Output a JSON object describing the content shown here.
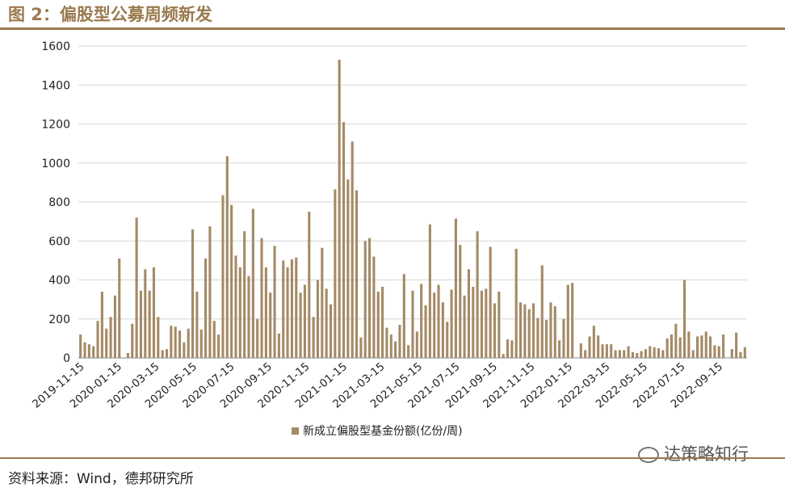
{
  "figure": {
    "title": "图 2：偏股型公募周频新发",
    "source": "资料来源：Wind，德邦研究所",
    "watermark": "达策略知行",
    "watermark_icon": "wechat-icon"
  },
  "colors": {
    "bar": "#a48a66",
    "grid": "#d6d6d6",
    "accent": "#9a7b4f"
  },
  "chart_data": {
    "type": "bar",
    "title": "",
    "xlabel": "",
    "ylabel": "",
    "ylim": [
      0,
      1600
    ],
    "yticks": [
      0,
      200,
      400,
      600,
      800,
      1000,
      1200,
      1400,
      1600
    ],
    "xtick_labels": [
      "2019-11-15",
      "2020-01-15",
      "2020-03-15",
      "2020-05-15",
      "2020-07-15",
      "2020-09-15",
      "2020-11-15",
      "2021-01-15",
      "2021-03-15",
      "2021-05-15",
      "2021-07-15",
      "2021-09-15",
      "2021-11-15",
      "2022-01-15",
      "2022-03-15",
      "2022-05-15",
      "2022-07-15",
      "2022-09-15"
    ],
    "grid": true,
    "legend": {
      "position": "bottom-center",
      "entries": [
        "新成立偏股型基金份额(亿份/周)"
      ]
    },
    "series": [
      {
        "name": "新成立偏股型基金份额(亿份/周)",
        "values": [
          120,
          80,
          70,
          60,
          190,
          340,
          150,
          210,
          320,
          510,
          0,
          25,
          175,
          720,
          345,
          455,
          345,
          465,
          210,
          40,
          45,
          165,
          160,
          140,
          80,
          150,
          660,
          340,
          145,
          510,
          675,
          190,
          120,
          835,
          1035,
          785,
          525,
          465,
          650,
          420,
          765,
          200,
          615,
          465,
          335,
          575,
          125,
          500,
          465,
          505,
          515,
          335,
          375,
          750,
          210,
          400,
          565,
          355,
          275,
          865,
          1530,
          1210,
          915,
          1110,
          860,
          105,
          600,
          615,
          520,
          340,
          365,
          155,
          120,
          85,
          170,
          430,
          65,
          345,
          135,
          380,
          270,
          685,
          335,
          375,
          285,
          185,
          350,
          715,
          580,
          320,
          455,
          365,
          650,
          345,
          355,
          570,
          280,
          340,
          20,
          95,
          90,
          560,
          285,
          275,
          250,
          280,
          205,
          475,
          195,
          285,
          265,
          90,
          200,
          375,
          385,
          0,
          75,
          40,
          110,
          165,
          115,
          70,
          70,
          70,
          40,
          40,
          40,
          60,
          30,
          25,
          35,
          45,
          60,
          55,
          50,
          40,
          100,
          120,
          175,
          105,
          400,
          135,
          40,
          110,
          115,
          135,
          110,
          65,
          60,
          120,
          0,
          45,
          130,
          30,
          55
        ]
      }
    ]
  }
}
